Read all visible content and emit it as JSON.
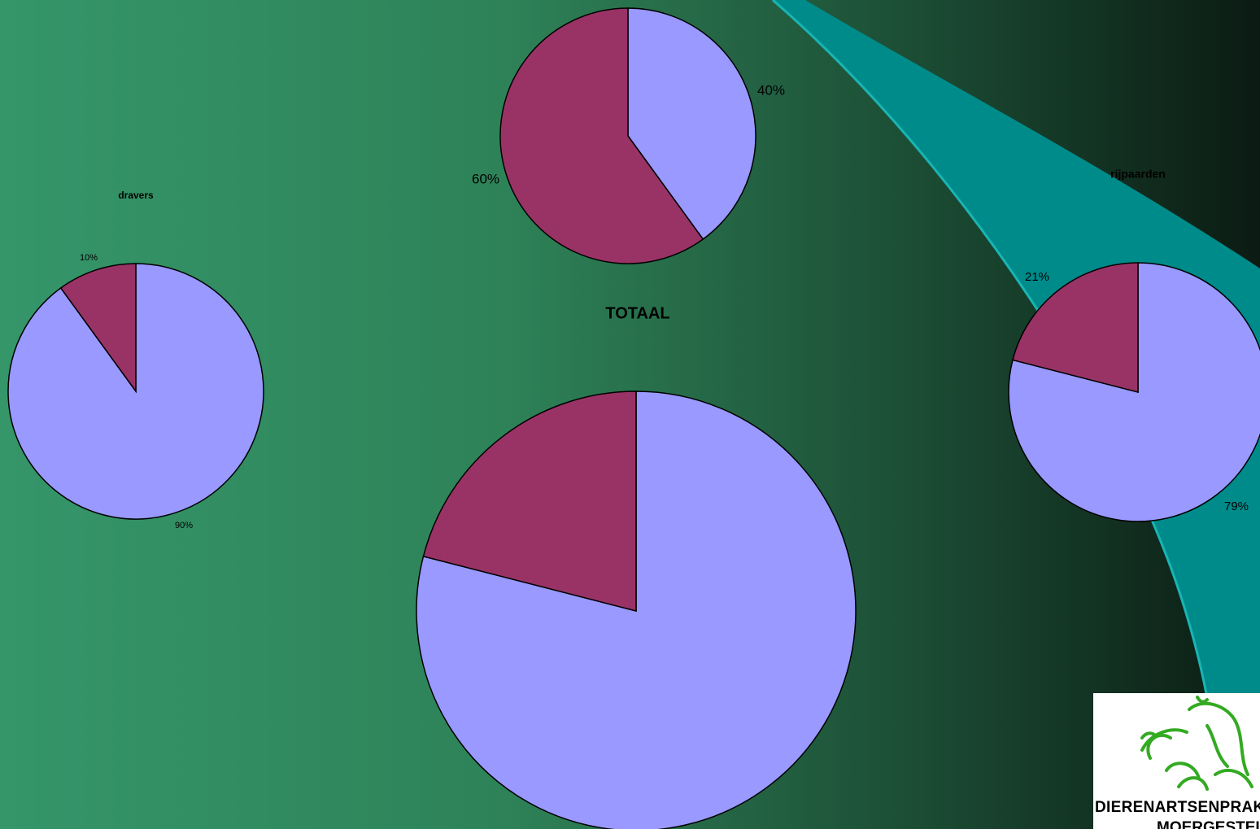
{
  "colors": {
    "slice_a": "#9999ff",
    "slice_b": "#993366",
    "ribbon": "#008b8b",
    "ribbon_edge": "#19b4b4"
  },
  "chart_data": [
    {
      "type": "pie",
      "title": "",
      "slices": [
        {
          "value": 40,
          "label": "40%",
          "color": "#9999ff"
        },
        {
          "value": 60,
          "label": "60%",
          "color": "#993366"
        }
      ]
    },
    {
      "type": "pie",
      "title": "dravers",
      "slices": [
        {
          "value": 90,
          "label": "90%",
          "color": "#9999ff"
        },
        {
          "value": 10,
          "label": "10%",
          "color": "#993366"
        }
      ]
    },
    {
      "type": "pie",
      "title": "TOTAAL",
      "slices": [
        {
          "value": 79,
          "label": "",
          "color": "#9999ff"
        },
        {
          "value": 21,
          "label": "",
          "color": "#993366"
        }
      ]
    },
    {
      "type": "pie",
      "title": "rijpaarden",
      "slices": [
        {
          "value": 79,
          "label": "79%",
          "color": "#9999ff"
        },
        {
          "value": 21,
          "label": "21%",
          "color": "#993366"
        }
      ]
    }
  ],
  "logo": {
    "line1": "DIERENARTSENPRAKTIJK",
    "line2": "MOERGESTEL"
  }
}
